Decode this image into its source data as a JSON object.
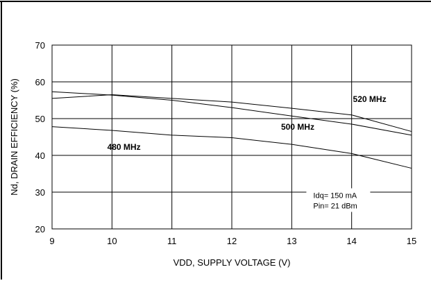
{
  "chart_data": {
    "type": "line",
    "xlabel": "VDD, SUPPLY VOLTAGE (V)",
    "ylabel": "Nd, DRAIN EFFICIENCY (%)",
    "xlim": [
      9,
      15
    ],
    "ylim": [
      20,
      70
    ],
    "x_ticks": [
      9,
      10,
      11,
      12,
      13,
      14,
      15
    ],
    "y_ticks": [
      20,
      30,
      40,
      50,
      60,
      70
    ],
    "x_tick_labels": [
      "9",
      "10",
      "11",
      "12",
      "13",
      "14",
      "15"
    ],
    "y_tick_labels": [
      "20",
      "30",
      "40",
      "50",
      "60",
      "70"
    ],
    "grid": true,
    "series": [
      {
        "name": "520 MHz",
        "x": [
          9,
          10,
          11,
          12,
          13,
          14,
          15
        ],
        "values": [
          55.5,
          56.5,
          55.5,
          54.5,
          52.8,
          51.0,
          46.5
        ]
      },
      {
        "name": "500 MHz",
        "x": [
          9,
          10,
          11,
          12,
          13,
          14,
          15
        ],
        "values": [
          57.3,
          56.4,
          55.0,
          53.0,
          50.7,
          48.5,
          45.5
        ]
      },
      {
        "name": "480 MHz",
        "x": [
          9,
          10,
          11,
          12,
          13,
          14,
          15
        ],
        "values": [
          47.8,
          46.8,
          45.5,
          44.8,
          43.0,
          40.5,
          36.5
        ]
      }
    ],
    "series_labels": [
      {
        "text": "520 MHz",
        "x": 14.3,
        "y": 54.5
      },
      {
        "text": "500 MHz",
        "x": 13.1,
        "y": 47.0
      },
      {
        "text": "480 MHz",
        "x": 10.2,
        "y": 41.5
      }
    ],
    "annotation": {
      "lines": [
        "Idq= 150 mA",
        "Pin= 21 dBm"
      ],
      "x": 13.36,
      "y": 28.4
    }
  }
}
